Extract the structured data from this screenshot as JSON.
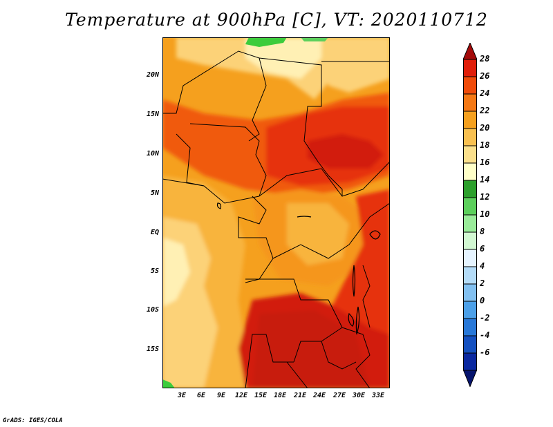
{
  "title": "Temperature at 900hPa [C], VT: 2020110712",
  "credit": "GrADS: IGES/COLA",
  "lat_labels": [
    "20N",
    "15N",
    "10N",
    "5N",
    "EQ",
    "5S",
    "10S",
    "15S"
  ],
  "lon_labels": [
    "3E",
    "6E",
    "9E",
    "12E",
    "15E",
    "18E",
    "21E",
    "24E",
    "27E",
    "30E",
    "33E"
  ],
  "colorbar": {
    "labels": [
      "28",
      "26",
      "24",
      "22",
      "20",
      "18",
      "16",
      "14",
      "12",
      "10",
      "8",
      "6",
      "4",
      "2",
      "0",
      "-2",
      "-4",
      "-6"
    ],
    "colors": [
      "#a50a0a",
      "#e01e0a",
      "#f04b0a",
      "#f57814",
      "#f5a01e",
      "#f8c050",
      "#fbe08c",
      "#ffffc8",
      "#2ca02c",
      "#5cd05c",
      "#9aec9a",
      "#d2f8d2",
      "#e6f4ff",
      "#b4dcf8",
      "#82c0f0",
      "#4ca0e8",
      "#2878d8",
      "#1450c0",
      "#0a28a0",
      "#06146e"
    ]
  },
  "legend_colors": {
    "t28": "#d21e0a",
    "t26": "#e6320a",
    "t24": "#f05a0a",
    "t22": "#f5961e",
    "t20": "#f8b43c",
    "t18": "#fcd278",
    "t16": "#fff0b4",
    "green": "#3ccc3c"
  }
}
